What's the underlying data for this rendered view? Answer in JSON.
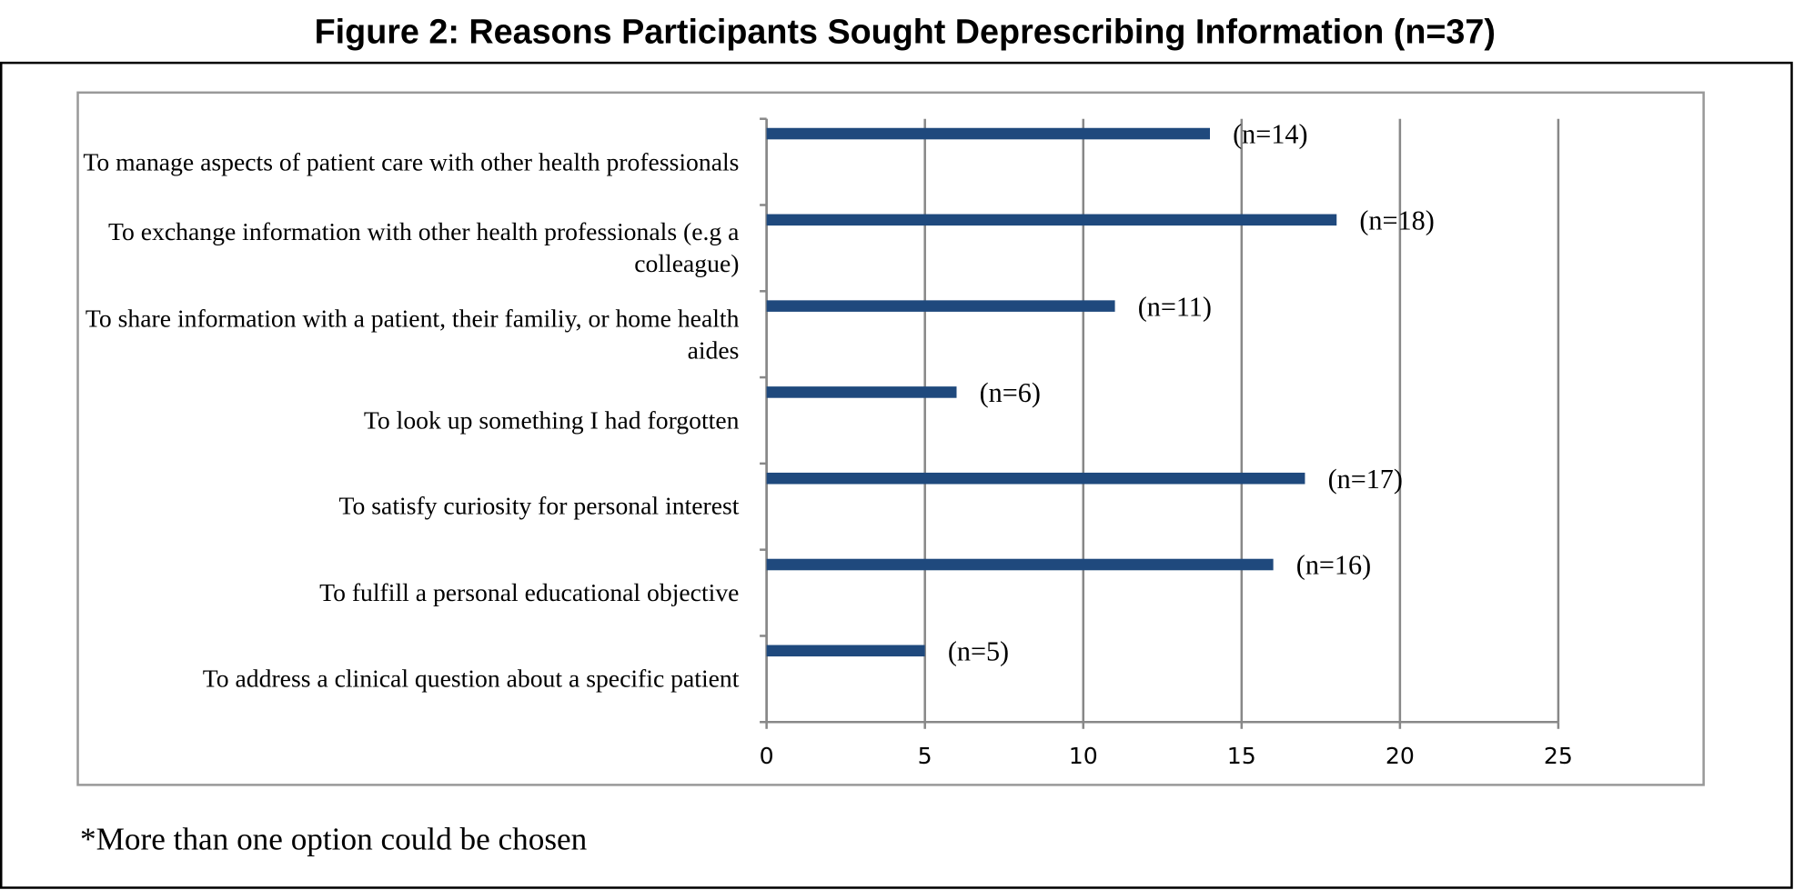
{
  "chart_data": {
    "type": "bar",
    "orientation": "horizontal",
    "title": "Figure 2: Reasons Participants Sought Deprescribing Information (n=37)",
    "categories": [
      "To manage aspects of patient care with other health professionals",
      "To exchange information with other health professionals (e.g a colleague)",
      "To share information with a patient, their familiy, or home health aides",
      "To look up something I had forgotten",
      "To satisfy curiosity for personal interest",
      "To fulfill a personal educational objective",
      "To address a clinical question about a specific patient"
    ],
    "values": [
      14,
      18,
      11,
      6,
      17,
      16,
      5
    ],
    "value_labels": [
      "(n=14)",
      "(n=18)",
      "(n=11)",
      "(n=6)",
      "(n=17)",
      "(n=16)",
      "(n=5)"
    ],
    "color": "#1f497d",
    "xlim": [
      0,
      25
    ],
    "xticks": [
      0,
      5,
      10,
      15,
      20,
      25
    ],
    "grid": true,
    "footnote": "*More than one option could be chosen"
  }
}
